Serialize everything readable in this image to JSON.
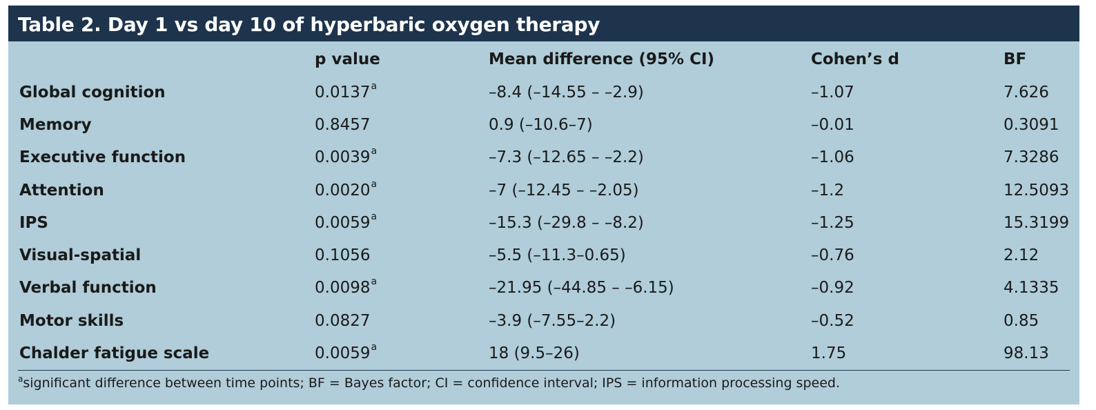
{
  "table": {
    "title": "Table 2. Day 1 vs day 10 of hyperbaric oxygen therapy",
    "headers": [
      "",
      "p value",
      "Mean difference (95% CI)",
      "Cohen’s d",
      "BF"
    ],
    "rows": [
      {
        "label": "Global cognition",
        "p_value": "0.0137",
        "p_note": "a",
        "mean_diff": "–8.4 (–14.55 – –2.9)",
        "cohens_d": "–1.07",
        "bf": "7.626"
      },
      {
        "label": "Memory",
        "p_value": "0.8457",
        "p_note": "",
        "mean_diff": "0.9 (–10.6–7)",
        "cohens_d": "–0.01",
        "bf": "0.3091"
      },
      {
        "label": "Executive function",
        "p_value": "0.0039",
        "p_note": "a",
        "mean_diff": "–7.3 (–12.65 – –2.2)",
        "cohens_d": "–1.06",
        "bf": "7.3286"
      },
      {
        "label": "Attention",
        "p_value": "0.0020",
        "p_note": "a",
        "mean_diff": "–7 (–12.45 – –2.05)",
        "cohens_d": "–1.2",
        "bf": "12.5093"
      },
      {
        "label": "IPS",
        "p_value": "0.0059",
        "p_note": "a",
        "mean_diff": "–15.3 (–29.8 – –8.2)",
        "cohens_d": "–1.25",
        "bf": "15.3199"
      },
      {
        "label": "Visual-spatial",
        "p_value": "0.1056",
        "p_note": "",
        "mean_diff": "–5.5 (–11.3–0.65)",
        "cohens_d": "–0.76",
        "bf": "2.12"
      },
      {
        "label": "Verbal function",
        "p_value": "0.0098",
        "p_note": "a",
        "mean_diff": "–21.95 (–44.85 – –6.15)",
        "cohens_d": "–0.92",
        "bf": "4.1335"
      },
      {
        "label": "Motor skills",
        "p_value": "0.0827",
        "p_note": "",
        "mean_diff": "–3.9 (–7.55–2.2)",
        "cohens_d": "–0.52",
        "bf": "0.85"
      },
      {
        "label": "Chalder fatigue scale",
        "p_value": "0.0059",
        "p_note": "a",
        "mean_diff": "18 (9.5–26)",
        "cohens_d": "1.75",
        "bf": "98.13"
      }
    ],
    "footnote_marker": "a",
    "footnote_text": "significant difference between time points; BF = Bayes factor; CI = confidence interval; IPS = information processing speed."
  },
  "colors": {
    "title_bg": "#1e344d",
    "table_bg": "#b0cdd9",
    "text": "#1a1a1a"
  }
}
